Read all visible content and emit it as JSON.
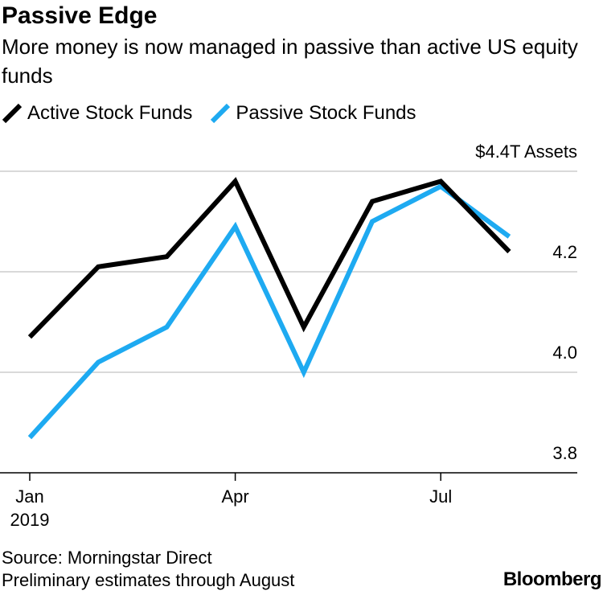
{
  "header": {
    "title": "Passive Edge",
    "subtitle": "More money is now managed in passive than active US equity funds"
  },
  "colors": {
    "active": "#000000",
    "passive": "#1eaaf1",
    "grid": "#d9d9d9",
    "axis": "#000000"
  },
  "chart_data": {
    "type": "line",
    "title": "Passive Edge",
    "subtitle": "More money is now managed in passive than active US equity funds",
    "unit_label": "$4.4T Assets",
    "x": [
      "2019-01",
      "2019-02",
      "2019-03",
      "2019-04",
      "2019-05",
      "2019-06",
      "2019-07",
      "2019-08"
    ],
    "x_ticks": [
      {
        "label": "Jan",
        "year": "2019",
        "index": 0
      },
      {
        "label": "Apr",
        "index": 3
      },
      {
        "label": "Jul",
        "index": 6
      }
    ],
    "ylim": [
      3.8,
      4.4
    ],
    "yticks": [
      {
        "value": 4.4,
        "label": "$4.4T Assets"
      },
      {
        "value": 4.2,
        "label": "4.2"
      },
      {
        "value": 4.0,
        "label": "4.0"
      },
      {
        "value": 3.8,
        "label": "3.8"
      }
    ],
    "grid": true,
    "legend_position": "top-left",
    "series": [
      {
        "name": "Active Stock Funds",
        "color": "#000000",
        "values": [
          4.07,
          4.21,
          4.23,
          4.38,
          4.09,
          4.34,
          4.38,
          4.24
        ]
      },
      {
        "name": "Passive Stock Funds",
        "color": "#1eaaf1",
        "values": [
          3.87,
          4.02,
          4.09,
          4.29,
          4.0,
          4.3,
          4.37,
          4.27
        ]
      }
    ]
  },
  "footer": {
    "source": "Source: Morningstar Direct",
    "note": "Preliminary estimates through August",
    "brand": "Bloomberg"
  }
}
